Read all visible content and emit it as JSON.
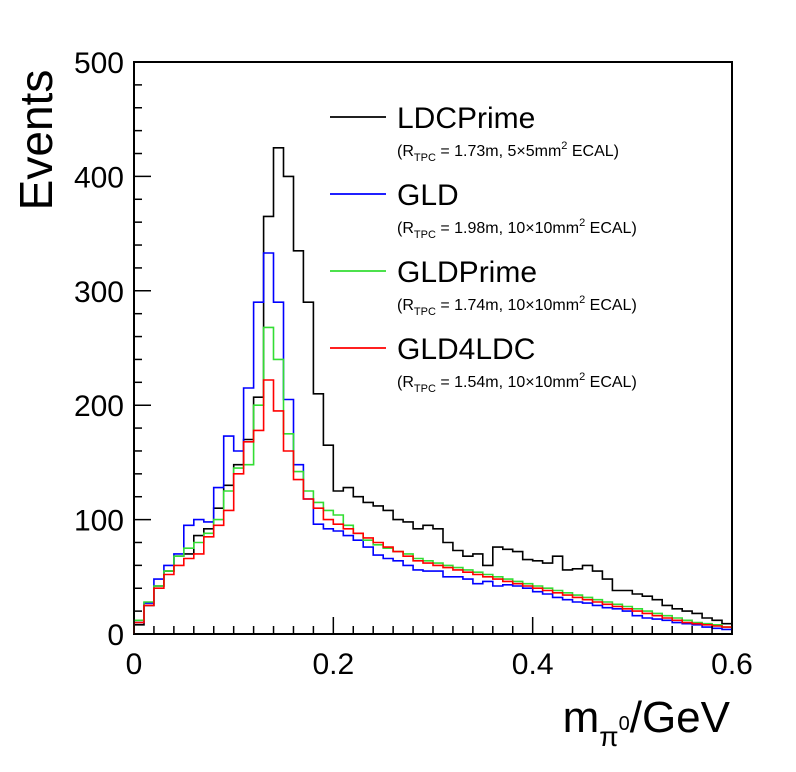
{
  "chart_data": {
    "type": "line",
    "style": "step-histogram",
    "xlabel_main": "m",
    "xlabel_sub": "π",
    "xlabel_sup": "0",
    "xlabel_unit": "/GeV",
    "ylabel": "Events",
    "xlim": [
      0,
      0.6
    ],
    "ylim": [
      0,
      500
    ],
    "x_ticks": [
      "0",
      "0.2",
      "0.4",
      "0.6"
    ],
    "y_ticks": [
      "0",
      "100",
      "200",
      "300",
      "400",
      "500"
    ],
    "bin_width": 0.01,
    "legend_position": "top-right",
    "series": [
      {
        "name": "LDCPrime",
        "note": {
          "open": "(R",
          "sub": "TPC",
          "mid": "= 1.73m, 5×5mm",
          "sup": "2",
          "close": " ECAL)"
        },
        "color": "#000000",
        "values": [
          8,
          25,
          42,
          55,
          68,
          70,
          86,
          92,
          110,
          130,
          148,
          170,
          207,
          365,
          425,
          400,
          335,
          290,
          210,
          165,
          125,
          128,
          120,
          115,
          112,
          108,
          100,
          98,
          92,
          95,
          92,
          80,
          73,
          68,
          70,
          60,
          76,
          74,
          72,
          65,
          64,
          62,
          68,
          56,
          57,
          60,
          55,
          48,
          38,
          38,
          35,
          33,
          30,
          25,
          22,
          20,
          18,
          14,
          12,
          9
        ]
      },
      {
        "name": "GLD",
        "note": {
          "open": "(R",
          "sub": "TPC",
          "mid": "= 1.98m, 10×10mm",
          "sup": "2",
          "close": " ECAL)"
        },
        "color": "#0000ff",
        "values": [
          10,
          27,
          48,
          60,
          70,
          95,
          100,
          98,
          128,
          173,
          160,
          215,
          290,
          333,
          290,
          205,
          148,
          118,
          96,
          92,
          90,
          86,
          82,
          76,
          69,
          66,
          64,
          60,
          56,
          55,
          55,
          50,
          50,
          48,
          44,
          46,
          42,
          43,
          42,
          40,
          37,
          35,
          32,
          30,
          28,
          27,
          25,
          23,
          22,
          20,
          16,
          14,
          13,
          12,
          10,
          9,
          8,
          6,
          5,
          4
        ]
      },
      {
        "name": "GLDPrime",
        "note": {
          "open": "(R",
          "sub": "TPC",
          "mid": "= 1.74m, 10×10mm",
          "sup": "2",
          "close": " ECAL)"
        },
        "color": "#33dd33",
        "values": [
          12,
          28,
          42,
          55,
          68,
          75,
          80,
          88,
          100,
          125,
          145,
          148,
          200,
          268,
          240,
          175,
          142,
          125,
          115,
          108,
          104,
          95,
          88,
          82,
          78,
          75,
          72,
          70,
          66,
          64,
          62,
          60,
          58,
          56,
          54,
          52,
          50,
          48,
          46,
          44,
          42,
          40,
          38,
          36,
          34,
          32,
          30,
          28,
          26,
          24,
          22,
          20,
          18,
          16,
          14,
          12,
          10,
          9,
          8,
          6
        ]
      },
      {
        "name": "GLD4LDC",
        "note": {
          "open": "(R",
          "sub": "TPC",
          "mid": "= 1.54m, 10×10mm",
          "sup": "2",
          "close": " ECAL)"
        },
        "color": "#ff0000",
        "values": [
          10,
          25,
          40,
          52,
          60,
          66,
          70,
          85,
          95,
          108,
          140,
          168,
          178,
          222,
          195,
          160,
          135,
          118,
          110,
          100,
          96,
          92,
          88,
          84,
          80,
          76,
          72,
          68,
          64,
          62,
          60,
          58,
          56,
          54,
          52,
          50,
          48,
          46,
          44,
          42,
          40,
          38,
          36,
          34,
          32,
          30,
          28,
          26,
          24,
          22,
          20,
          18,
          16,
          14,
          12,
          10,
          9,
          8,
          7,
          6
        ]
      }
    ]
  }
}
